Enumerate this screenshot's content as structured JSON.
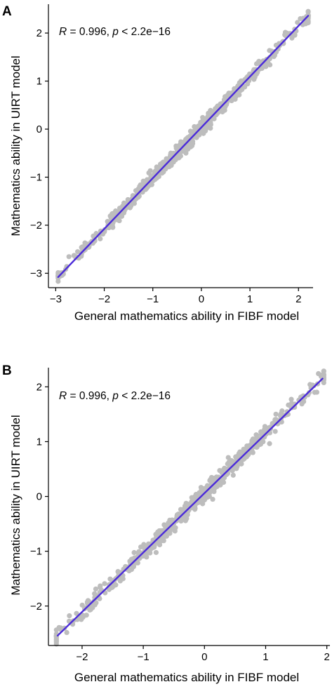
{
  "chart_data": [
    {
      "type": "scatter",
      "panel_label": "A",
      "annotation": {
        "r_label": "R",
        "r_value": " = 0.996, ",
        "p_label": "p",
        "p_value": " < 2.2e−16"
      },
      "xlabel": "General mathematics ability in FIBF model",
      "ylabel": "Mathematics ability in UIRT model",
      "xlim": [
        -3.15,
        2.3
      ],
      "ylim": [
        -3.3,
        2.6
      ],
      "xticks": [
        -3,
        -2,
        -1,
        0,
        1,
        2
      ],
      "xtick_labels": [
        "−3",
        "−2",
        "−1",
        "0",
        "1",
        "2"
      ],
      "yticks": [
        -3,
        -2,
        -1,
        0,
        1,
        2
      ],
      "ytick_labels": [
        "−3",
        "−2",
        "−1",
        "0",
        "1",
        "2"
      ],
      "fit_line": {
        "x": [
          -2.95,
          2.2
        ],
        "y": [
          -3.08,
          2.36
        ]
      },
      "point_range": {
        "x": [
          -2.95,
          2.2
        ]
      },
      "point_count": 700,
      "point_scatter_sd": 0.07,
      "point_color": "#bdbdbd",
      "line_color": "#4b2bd9",
      "grid": false
    },
    {
      "type": "scatter",
      "panel_label": "B",
      "annotation": {
        "r_label": "R",
        "r_value": " = 0.996, ",
        "p_label": "p",
        "p_value": " < 2.2e−16"
      },
      "xlabel": "General mathematics ability in FIBF model",
      "ylabel": "Mathematics ability in UIRT model",
      "xlim": [
        -2.55,
        2.05
      ],
      "ylim": [
        -2.72,
        2.35
      ],
      "xticks": [
        -2,
        -1,
        0,
        1,
        2
      ],
      "xtick_labels": [
        "−2",
        "−1",
        "0",
        "1",
        "2"
      ],
      "yticks": [
        -2,
        -1,
        0,
        1,
        2
      ],
      "ytick_labels": [
        "−2",
        "−1",
        "0",
        "1",
        "2"
      ],
      "fit_line": {
        "x": [
          -2.4,
          1.93
        ],
        "y": [
          -2.54,
          2.15
        ]
      },
      "point_range": {
        "x": [
          -2.42,
          1.95
        ]
      },
      "point_count": 700,
      "point_scatter_sd": 0.07,
      "point_color": "#bdbdbd",
      "line_color": "#4b2bd9",
      "grid": false
    }
  ]
}
